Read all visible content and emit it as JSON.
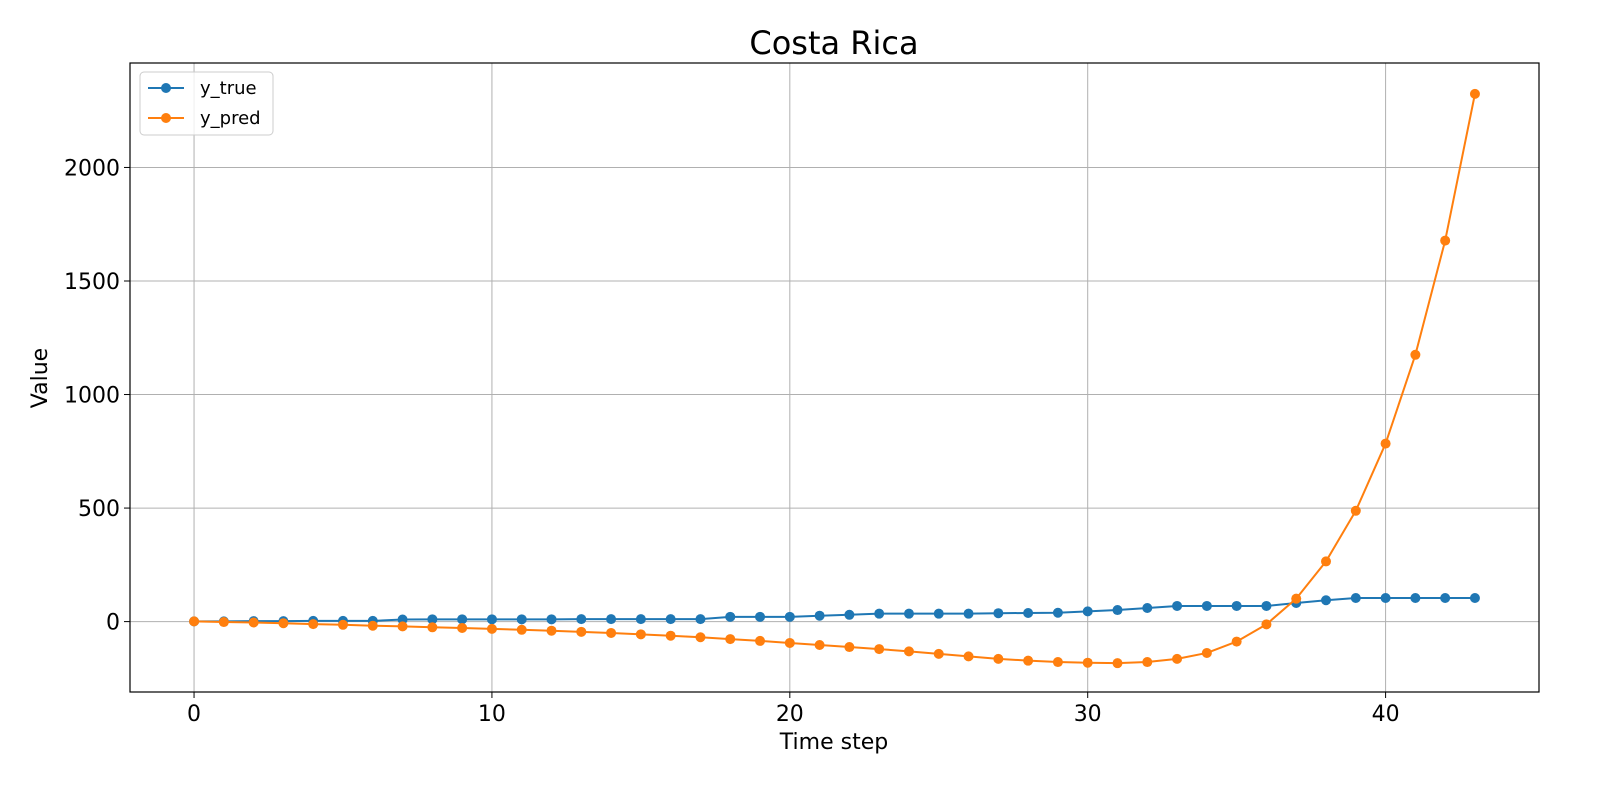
{
  "chart_data": {
    "type": "line",
    "title": "Costa Rica",
    "xlabel": "Time step",
    "ylabel": "Value",
    "xlim": [
      -2.15,
      45.15
    ],
    "ylim": [
      -310,
      2460
    ],
    "xticks": [
      0,
      10,
      20,
      30,
      40
    ],
    "yticks": [
      0,
      500,
      1000,
      1500,
      2000
    ],
    "grid": true,
    "legend_position": "top-left",
    "x": [
      0,
      1,
      2,
      3,
      4,
      5,
      6,
      7,
      8,
      9,
      10,
      11,
      12,
      13,
      14,
      15,
      16,
      17,
      18,
      19,
      20,
      21,
      22,
      23,
      24,
      25,
      26,
      27,
      28,
      29,
      30,
      31,
      32,
      33,
      34,
      35,
      36,
      37,
      38,
      39,
      40,
      41,
      42,
      43
    ],
    "series": [
      {
        "name": "y_true",
        "color": "#1f77b4",
        "values": [
          1,
          1,
          2,
          2,
          3,
          3,
          3,
          9,
          10,
          10,
          10,
          10,
          10,
          11,
          11,
          11,
          11,
          11,
          21,
          21,
          21,
          26,
          30,
          35,
          35,
          35,
          35,
          37,
          38,
          39,
          45,
          51,
          60,
          69,
          69,
          69,
          69,
          82,
          94,
          104,
          104,
          104,
          104,
          104
        ]
      },
      {
        "name": "y_pred",
        "color": "#ff7f0e",
        "values": [
          1,
          -2,
          -4,
          -7,
          -11,
          -14,
          -18,
          -21,
          -25,
          -28,
          -32,
          -36,
          -40,
          -45,
          -50,
          -56,
          -62,
          -69,
          -77,
          -85,
          -94,
          -103,
          -112,
          -121,
          -131,
          -142,
          -153,
          -164,
          -172,
          -178,
          -181,
          -183,
          -178,
          -164,
          -138,
          -88,
          -12,
          101,
          265,
          488,
          784,
          1175,
          1678,
          2324
        ]
      }
    ]
  }
}
